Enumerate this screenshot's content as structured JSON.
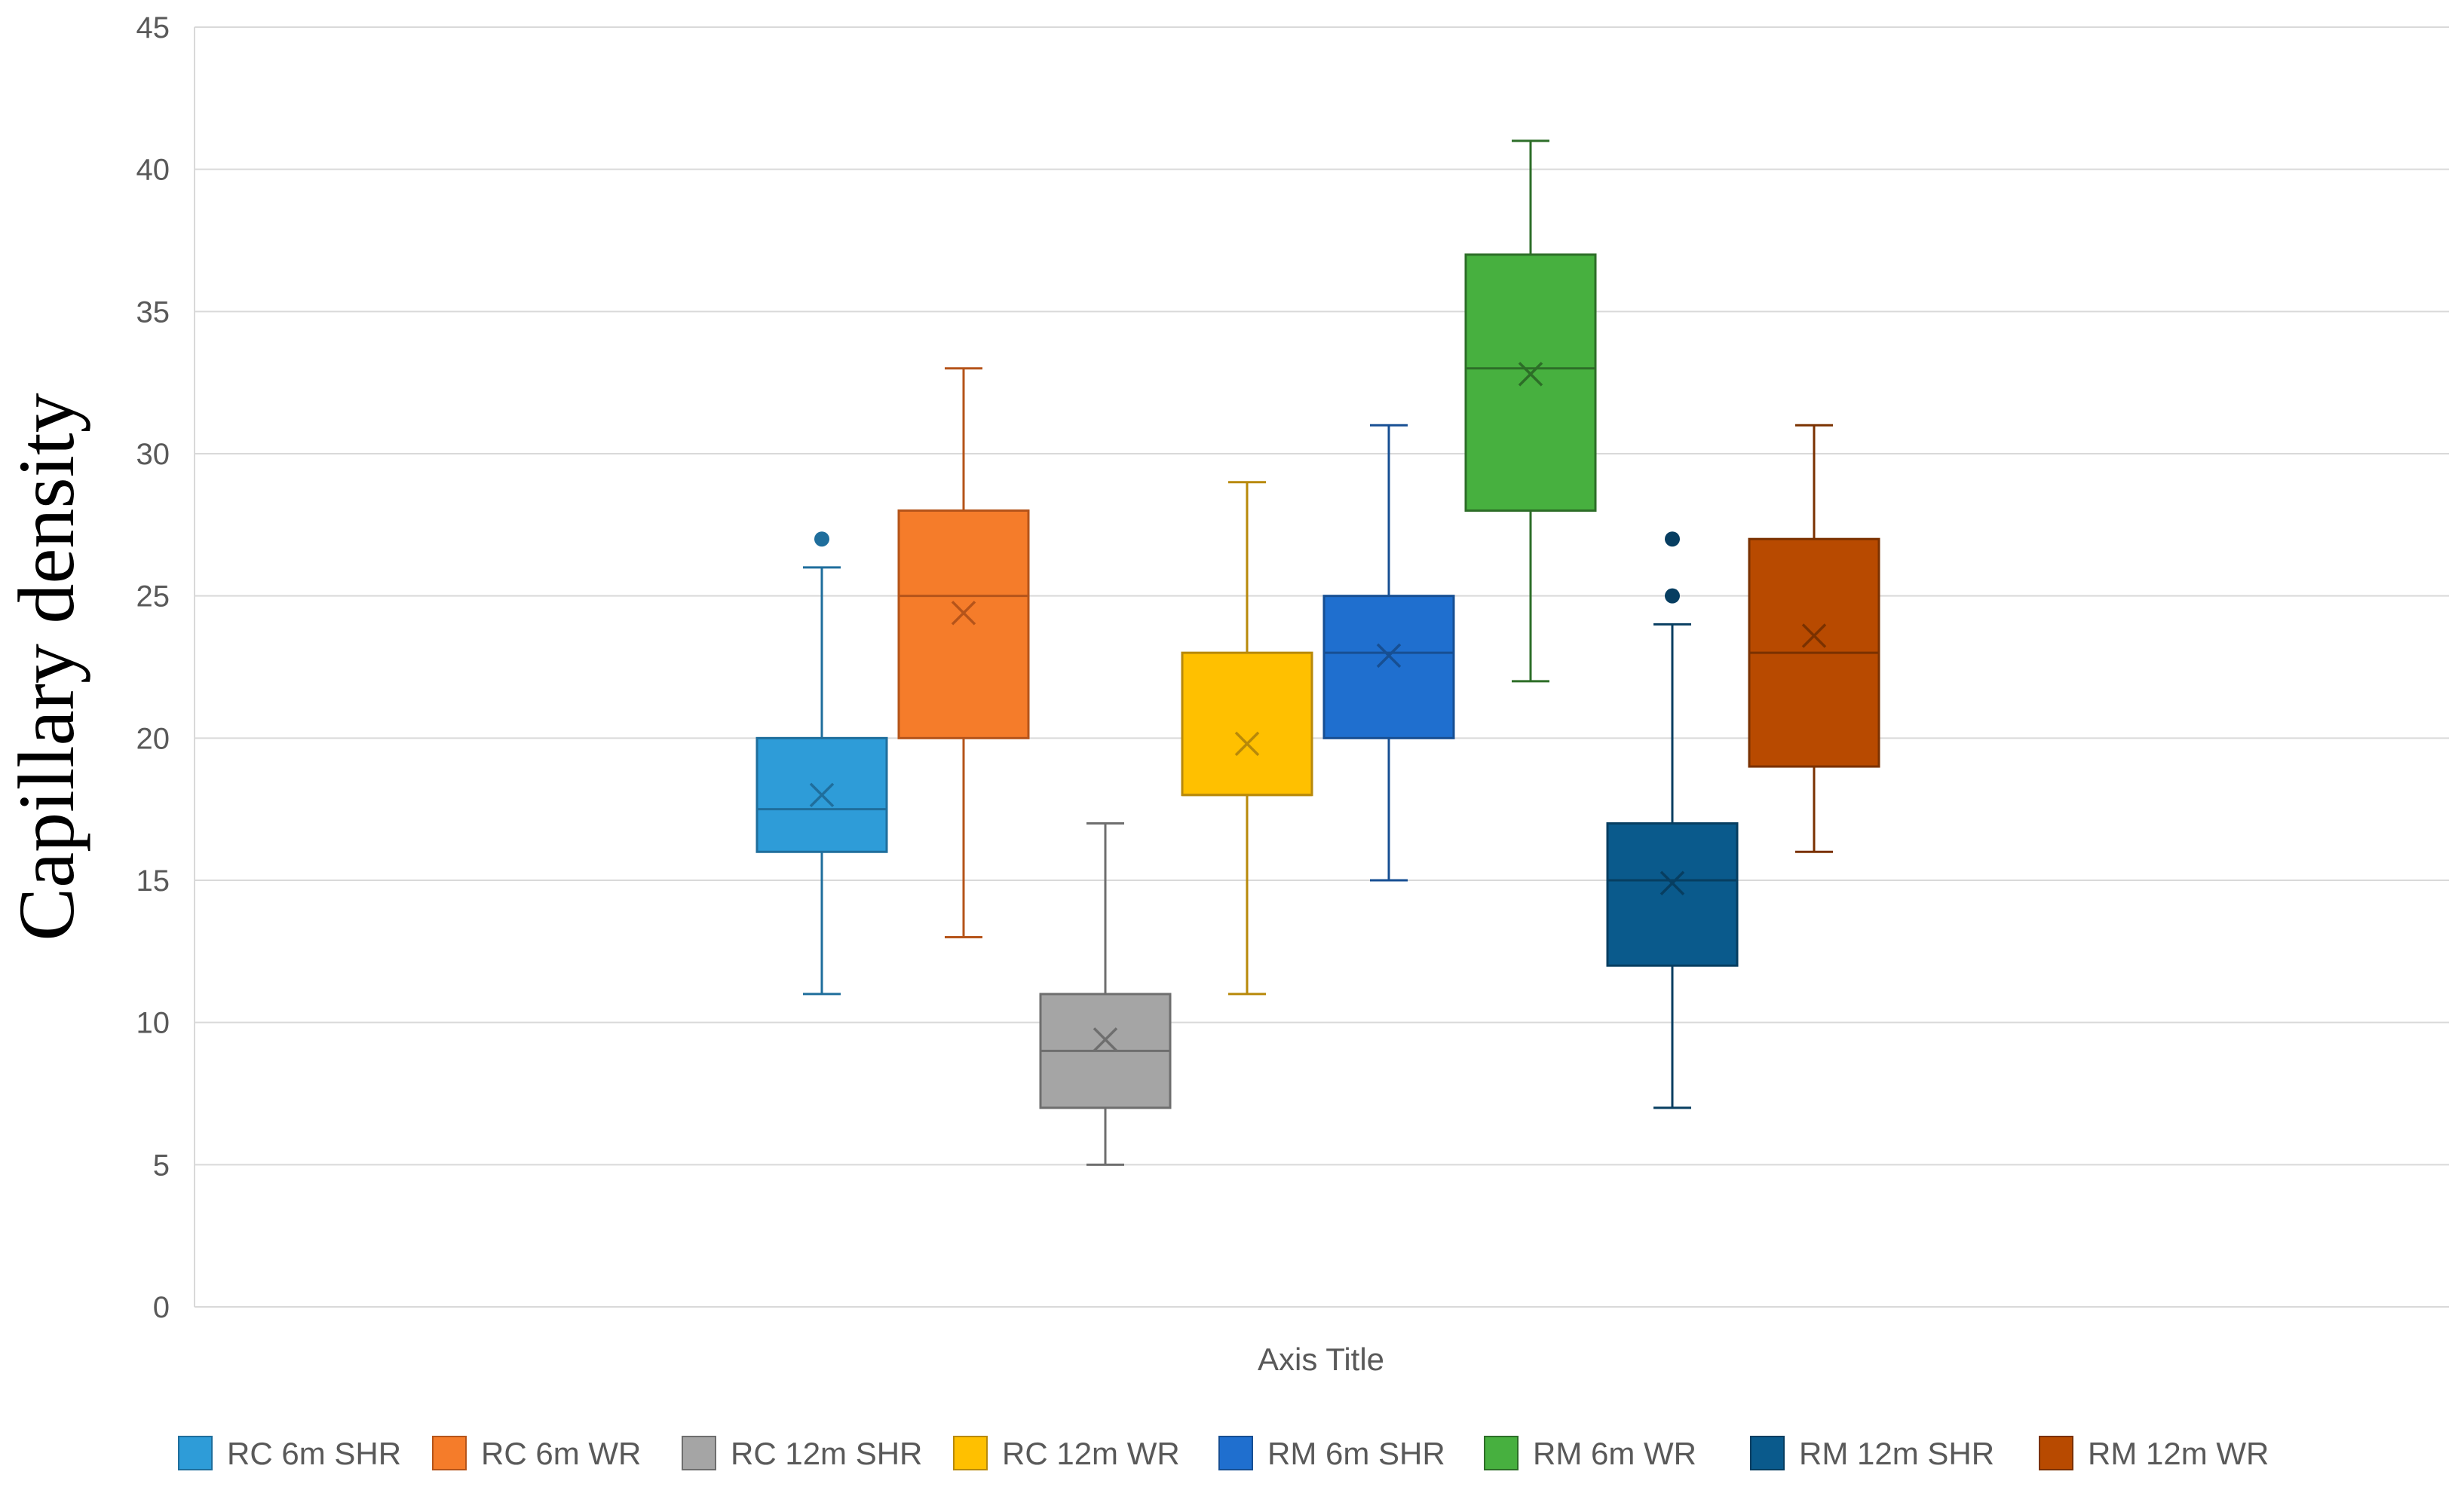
{
  "chart_data": {
    "type": "boxplot",
    "title": "",
    "xlabel": "Axis Title",
    "ylabel": "Capillary density",
    "ylim": [
      0,
      45
    ],
    "yticks": [
      0,
      5,
      10,
      15,
      20,
      25,
      30,
      35,
      40,
      45
    ],
    "grid": true,
    "legend_position": "bottom",
    "series": [
      {
        "name": "RC 6m SHR",
        "color": "#2E9CD8",
        "dark": "#1F6E9C",
        "min": 11,
        "q1": 16,
        "median": 17.5,
        "q3": 20,
        "max": 26,
        "mean": 18.0,
        "outliers": [
          27
        ]
      },
      {
        "name": "RC 6m WR",
        "color": "#F57C2A",
        "dark": "#B5541A",
        "min": 13,
        "q1": 20,
        "median": 25,
        "q3": 28,
        "max": 33,
        "mean": 24.4,
        "outliers": []
      },
      {
        "name": "RC 12m SHR",
        "color": "#A5A5A5",
        "dark": "#6E6E6E",
        "min": 5,
        "q1": 7,
        "median": 9,
        "q3": 11,
        "max": 17,
        "mean": 9.4,
        "outliers": []
      },
      {
        "name": "RC 12m WR",
        "color": "#FFC000",
        "dark": "#B8890A",
        "min": 11,
        "q1": 18,
        "median": 18,
        "q3": 23,
        "max": 29,
        "mean": 19.8,
        "outliers": []
      },
      {
        "name": "RM 6m SHR",
        "color": "#1F6FCF",
        "dark": "#174F93",
        "min": 15,
        "q1": 20,
        "median": 23,
        "q3": 25,
        "max": 31,
        "mean": 22.9,
        "outliers": []
      },
      {
        "name": "RM 6m WR",
        "color": "#47B03F",
        "dark": "#2D6E28",
        "min": 22,
        "q1": 28,
        "median": 33,
        "q3": 37,
        "max": 41,
        "mean": 32.8,
        "outliers": []
      },
      {
        "name": "RM 12m SHR",
        "color": "#0A5A8C",
        "dark": "#073E61",
        "min": 7,
        "q1": 12,
        "median": 15,
        "q3": 17,
        "max": 24,
        "mean": 14.9,
        "outliers": [
          25,
          27
        ]
      },
      {
        "name": "RM 12m WR",
        "color": "#B84A00",
        "dark": "#7A3100",
        "min": 16,
        "q1": 19,
        "median": 23,
        "q3": 27,
        "max": 31,
        "mean": 23.6,
        "outliers": []
      }
    ]
  }
}
